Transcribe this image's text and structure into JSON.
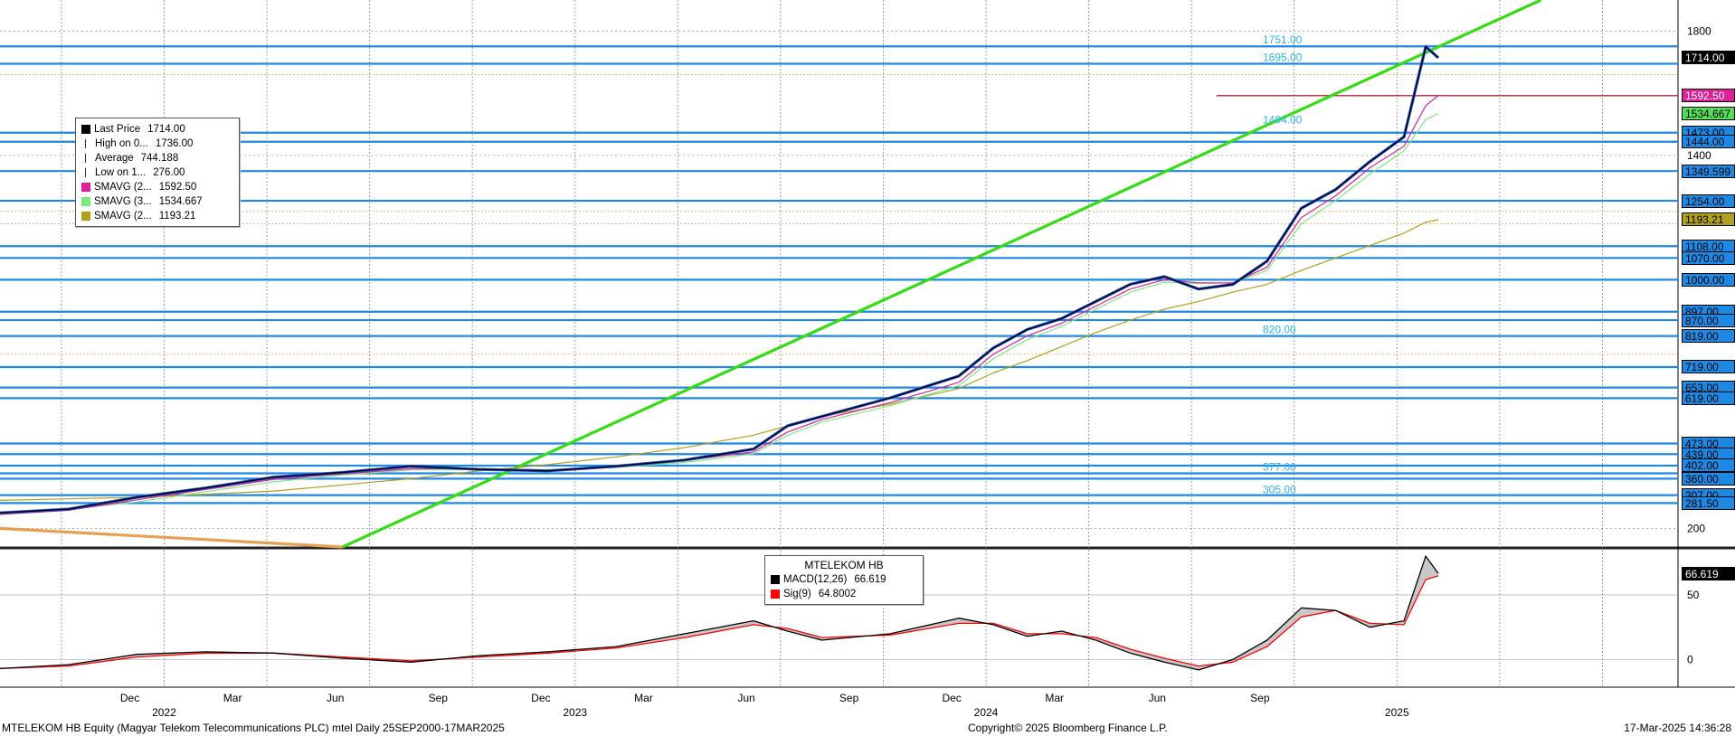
{
  "chart_data": [
    {
      "type": "line",
      "title": "",
      "security": "MTELEKOM HB",
      "x_axis": {
        "month_labels": [
          "Dec",
          "Mar",
          "Jun",
          "Sep",
          "Dec",
          "Mar",
          "Jun",
          "Sep",
          "Dec",
          "Mar",
          "Jun",
          "Sep"
        ],
        "year_labels": [
          "2022",
          "2023",
          "2024",
          "2025"
        ],
        "range": [
          "2021-09",
          "2025-10"
        ]
      },
      "y_axis": {
        "ticks": [
          200,
          1400,
          1800
        ],
        "range": [
          140,
          1900
        ],
        "side": "right"
      },
      "series": [
        {
          "name": "Last Price",
          "color": "#000000",
          "x": [
            "2021-09",
            "2021-11",
            "2022-01",
            "2022-03",
            "2022-05",
            "2022-07",
            "2022-09",
            "2022-11",
            "2023-01",
            "2023-03",
            "2023-05",
            "2023-07",
            "2023-08",
            "2023-09",
            "2023-11",
            "2024-01",
            "2024-02",
            "2024-03",
            "2024-04",
            "2024-05",
            "2024-06",
            "2024-07",
            "2024-08",
            "2024-09",
            "2024-10",
            "2024-11",
            "2024-12",
            "2025-01",
            "2025-02",
            "2025-02-20",
            "2025-03"
          ],
          "values": [
            250,
            262,
            300,
            330,
            365,
            380,
            400,
            390,
            385,
            400,
            420,
            455,
            530,
            560,
            620,
            690,
            780,
            840,
            875,
            930,
            985,
            1010,
            970,
            985,
            1060,
            1230,
            1290,
            1380,
            1460,
            1750,
            1714
          ]
        },
        {
          "name": "SMAVG (2...",
          "color": "#e0209a",
          "values": [
            245,
            258,
            292,
            325,
            358,
            375,
            392,
            392,
            388,
            398,
            418,
            446,
            510,
            550,
            605,
            670,
            760,
            820,
            860,
            915,
            970,
            1000,
            990,
            990,
            1040,
            1200,
            1270,
            1360,
            1430,
            1560,
            1592.5
          ]
        },
        {
          "name": "SMAVG (3...",
          "color": "#7de87d",
          "values": [
            248,
            262,
            285,
            318,
            350,
            372,
            388,
            390,
            389,
            396,
            412,
            440,
            500,
            542,
            595,
            660,
            745,
            808,
            850,
            905,
            960,
            992,
            988,
            990,
            1030,
            1180,
            1255,
            1340,
            1415,
            1515,
            1534.667
          ]
        },
        {
          "name": "SMAVG (2...",
          "color": "#b0a020",
          "values": [
            290,
            295,
            300,
            310,
            320,
            340,
            360,
            385,
            405,
            430,
            460,
            500,
            530,
            560,
            600,
            650,
            700,
            740,
            785,
            830,
            870,
            905,
            930,
            960,
            985,
            1030,
            1070,
            1110,
            1150,
            1185,
            1193.21
          ]
        }
      ],
      "trendlines": [
        {
          "color": "#33dd11",
          "from": {
            "x": "2022-07",
            "y": 140
          },
          "to": {
            "x": "2025-06",
            "y": 1900
          }
        },
        {
          "color": "#e8a050",
          "from": {
            "x": "2021-09",
            "y": 200
          },
          "to": {
            "x": "2022-07",
            "y": 140
          }
        }
      ],
      "horizontal_levels": [
        1751,
        1695,
        1592.5,
        1473,
        1444,
        1349.599,
        1254,
        1108,
        1070,
        1000,
        897,
        870,
        819,
        719,
        653,
        619,
        473,
        439,
        402,
        377,
        360,
        307,
        281.5
      ],
      "level_labels": [
        {
          "text": "1751.00",
          "y": 1751
        },
        {
          "text": "1695.00",
          "y": 1695
        },
        {
          "text": "1494.00",
          "y": 1494
        },
        {
          "text": "820.00",
          "y": 820
        },
        {
          "text": "377.00",
          "y": 377
        },
        {
          "text": "305.00",
          "y": 305
        }
      ],
      "right_axis_tags": [
        {
          "text": "1714.00",
          "y": 1714,
          "bg": "#000000",
          "fg": "#ffffff"
        },
        {
          "text": "1592.50",
          "y": 1592.5,
          "bg": "#e0209a",
          "fg": "#ffffff"
        },
        {
          "text": "1534.667",
          "y": 1534.667,
          "bg": "#55dd55",
          "fg": "#000000"
        },
        {
          "text": "1473.00",
          "y": 1473,
          "bg": "#1e88e5",
          "fg": "#000000"
        },
        {
          "text": "1444.00",
          "y": 1444,
          "bg": "#1e88e5",
          "fg": "#000000"
        },
        {
          "text": "1349.599",
          "y": 1349.599,
          "bg": "#1e88e5",
          "fg": "#000000"
        },
        {
          "text": "1254.00",
          "y": 1254,
          "bg": "#1e88e5",
          "fg": "#000000"
        },
        {
          "text": "1193.21",
          "y": 1193.21,
          "bg": "#b0a020",
          "fg": "#000000"
        },
        {
          "text": "1108.00",
          "y": 1108,
          "bg": "#1e88e5",
          "fg": "#000000"
        },
        {
          "text": "1070.00",
          "y": 1070,
          "bg": "#1e88e5",
          "fg": "#000000"
        },
        {
          "text": "1000.00",
          "y": 1000,
          "bg": "#1e88e5",
          "fg": "#000000"
        },
        {
          "text": "897.00",
          "y": 897,
          "bg": "#1e88e5",
          "fg": "#000000"
        },
        {
          "text": "870.00",
          "y": 870,
          "bg": "#1e88e5",
          "fg": "#000000"
        },
        {
          "text": "819.00",
          "y": 819,
          "bg": "#1e88e5",
          "fg": "#000000"
        },
        {
          "text": "719.00",
          "y": 719,
          "bg": "#1e88e5",
          "fg": "#000000"
        },
        {
          "text": "653.00",
          "y": 653,
          "bg": "#1e88e5",
          "fg": "#000000"
        },
        {
          "text": "619.00",
          "y": 619,
          "bg": "#1e88e5",
          "fg": "#000000"
        },
        {
          "text": "473.00",
          "y": 473,
          "bg": "#1e88e5",
          "fg": "#000000"
        },
        {
          "text": "439.00",
          "y": 439,
          "bg": "#1e88e5",
          "fg": "#000000"
        },
        {
          "text": "402.00",
          "y": 402,
          "bg": "#1e88e5",
          "fg": "#000000"
        },
        {
          "text": "360.00",
          "y": 360,
          "bg": "#1e88e5",
          "fg": "#000000"
        },
        {
          "text": "307.00",
          "y": 307,
          "bg": "#1e88e5",
          "fg": "#000000"
        },
        {
          "text": "281.50",
          "y": 281.5,
          "bg": "#1e88e5",
          "fg": "#000000"
        }
      ],
      "legend": {
        "placement": "top-left",
        "items": [
          {
            "name": "Last Price",
            "value": "1714.00",
            "swatch": "#000000"
          },
          {
            "name": "High on 0...",
            "value": "1736.00",
            "swatch": "high-icon"
          },
          {
            "name": "Average",
            "value": "744.188",
            "swatch": "average-icon"
          },
          {
            "name": "Low on 1...",
            "value": "276.00",
            "swatch": "low-icon"
          },
          {
            "name": "SMAVG (2...",
            "value": "1592.50",
            "swatch": "#e0209a"
          },
          {
            "name": "SMAVG (3...",
            "value": "1534.667",
            "swatch": "#7de87d"
          },
          {
            "name": "SMAVG (2...",
            "value": "1193.21",
            "swatch": "#b0a020"
          }
        ]
      },
      "grid": true
    },
    {
      "type": "line",
      "title": "MTELEKOM HB",
      "y_axis": {
        "ticks": [
          0,
          50
        ],
        "range": [
          -20,
          85
        ],
        "side": "right"
      },
      "series": [
        {
          "name": "MACD(12,26)",
          "color": "#000000",
          "x": [
            "2021-09",
            "2021-11",
            "2022-01",
            "2022-03",
            "2022-05",
            "2022-07",
            "2022-09",
            "2022-11",
            "2023-01",
            "2023-03",
            "2023-05",
            "2023-07",
            "2023-08",
            "2023-09",
            "2023-11",
            "2024-01",
            "2024-02",
            "2024-03",
            "2024-04",
            "2024-05",
            "2024-06",
            "2024-07",
            "2024-08",
            "2024-09",
            "2024-10",
            "2024-11",
            "2024-12",
            "2025-01",
            "2025-02",
            "2025-02-20",
            "2025-03"
          ],
          "values": [
            -7,
            -4,
            4,
            6,
            5,
            1,
            -2,
            3,
            6,
            10,
            20,
            30,
            22,
            15,
            20,
            32,
            27,
            18,
            22,
            15,
            5,
            -2,
            -8,
            0,
            15,
            40,
            38,
            25,
            30,
            80,
            66.619
          ]
        },
        {
          "name": "Sig(9)",
          "color": "#ff0000",
          "values": [
            -7,
            -5,
            2,
            5,
            5,
            2,
            -1,
            2,
            5,
            9,
            17,
            27,
            24,
            17,
            19,
            28,
            28,
            20,
            20,
            17,
            8,
            1,
            -5,
            -2,
            10,
            33,
            38,
            28,
            27,
            62,
            64.8002
          ]
        }
      ],
      "legend": {
        "placement": "top-center",
        "items": [
          {
            "name": "MACD(12,26)",
            "value": "66.619",
            "swatch": "#000000"
          },
          {
            "name": "Sig(9)",
            "value": "64.8002",
            "swatch": "#ff0000"
          }
        ]
      },
      "right_axis_tags": [
        {
          "text": "66.619",
          "y": 66.619,
          "bg": "#000000",
          "fg": "#ffffff"
        }
      ],
      "grid": true
    }
  ],
  "footer": {
    "left": "MTELEKOM HB Equity (Magyar Telekom Telecommunications PLC) mtel  Daily 25SEP2000-17MAR2025",
    "center": "Copyright© 2025 Bloomberg Finance L.P.",
    "right": "17-Mar-2025 14:36:28"
  }
}
